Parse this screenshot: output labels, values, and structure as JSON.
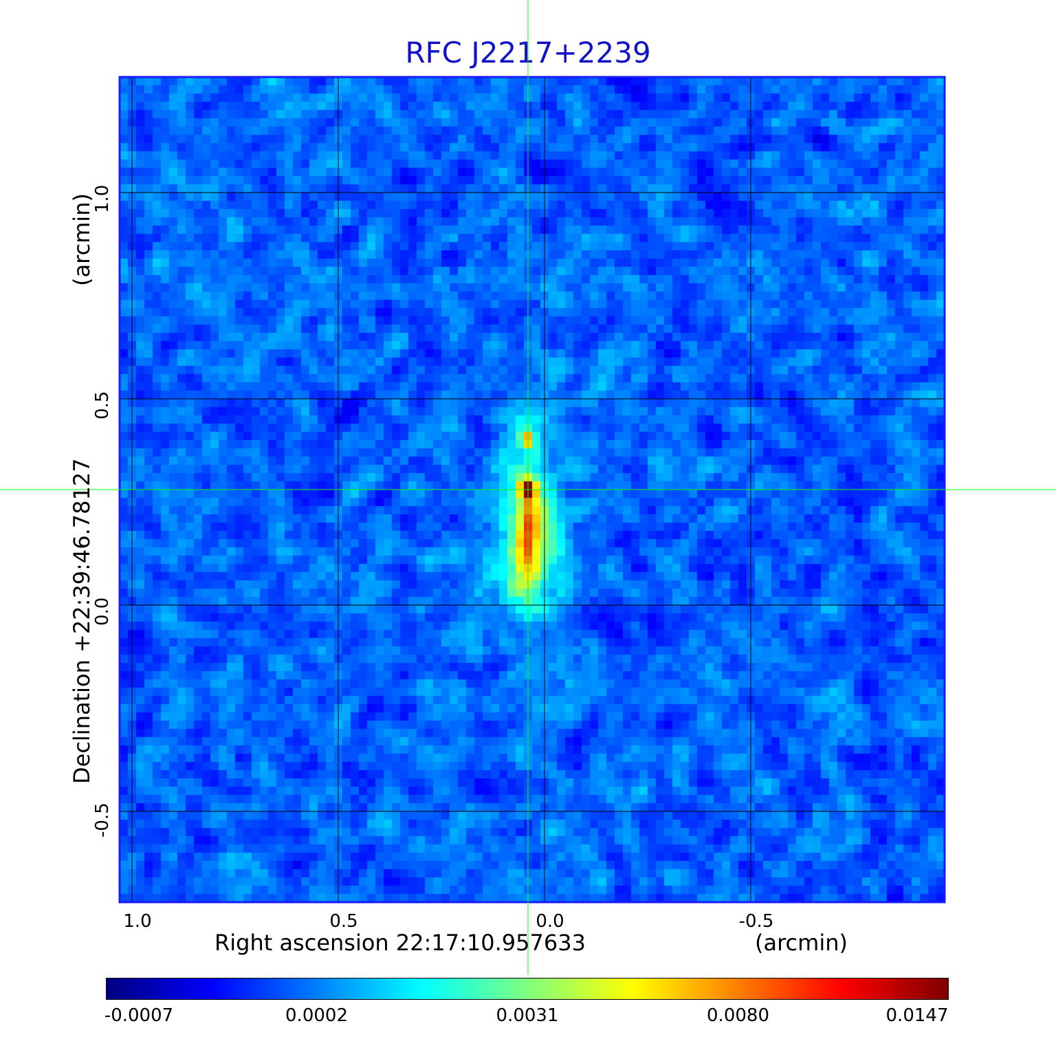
{
  "chart_data": {
    "type": "heatmap",
    "title": "RFC J2217+2239",
    "xlabel": "Right ascension  22:17:10.957633",
    "xunit": "(arcmin)",
    "ylabel": "Declination  +22:39:46.78127",
    "yunit": "(arcmin)",
    "x_ticks": [
      "1.0",
      "0.5",
      "0.0",
      "-0.5"
    ],
    "y_ticks": [
      "1.0",
      "0.5",
      "0.0",
      "-0.5"
    ],
    "x_tick_values": [
      1.0,
      0.5,
      0.0,
      -0.5
    ],
    "y_tick_values": [
      1.0,
      0.5,
      0.0,
      -0.5
    ],
    "xlim": [
      1.03,
      -0.97
    ],
    "ylim": [
      -0.72,
      1.28
    ],
    "grid": true,
    "crosshair": {
      "x": 0.04,
      "y": 0.28
    },
    "colorbar": {
      "ticks": [
        "-0.0007",
        "0.0002",
        "0.0031",
        "0.0080",
        "0.0147"
      ],
      "values": [
        -0.0007,
        0.0002,
        0.0031,
        0.008,
        0.0147
      ],
      "colormap": "jet",
      "placement": "bottom"
    },
    "sources": [
      {
        "x": 0.04,
        "y": 0.28,
        "peak": 0.0147
      },
      {
        "x": 0.04,
        "y": 0.4,
        "peak": 0.0085
      },
      {
        "x": 0.04,
        "y": 0.12,
        "peak": 0.0045
      }
    ]
  },
  "colors": {
    "title": "#1212c8",
    "frame": "#1a1aff",
    "grid": "#000000",
    "crosshair": "#00ff00"
  }
}
